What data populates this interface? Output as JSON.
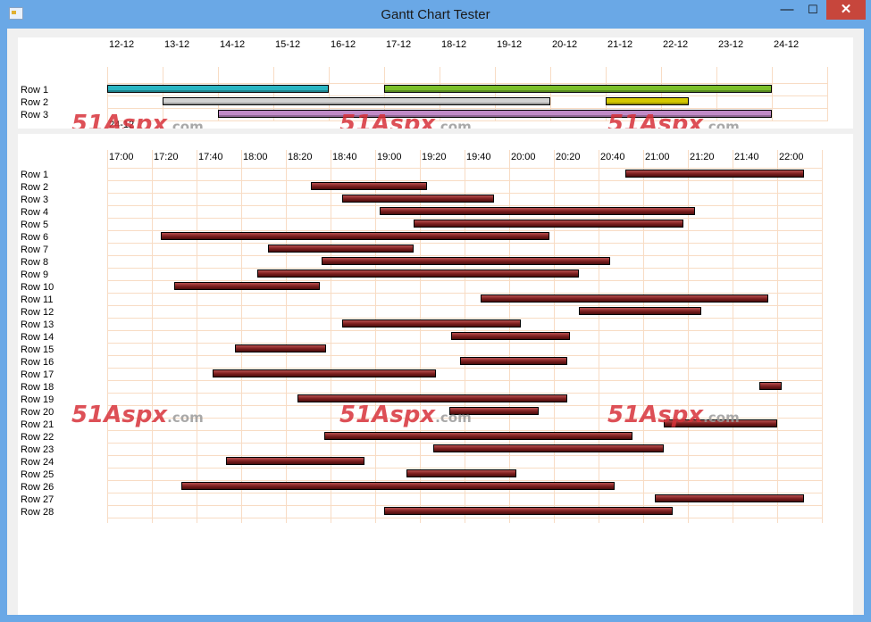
{
  "window": {
    "title": "Gantt Chart Tester",
    "buttons": {
      "minimize": "—",
      "maximize": "☐",
      "close": "✕"
    }
  },
  "watermark": {
    "num": "51",
    "asp": "Aspx",
    "com": ".com"
  },
  "top_chart": {
    "headers": [
      "12-12",
      "13-12",
      "14-12",
      "15-12",
      "16-12",
      "17-12",
      "18-12",
      "19-12",
      "20-12",
      "21-12",
      "22-12",
      "23-12",
      "24-12"
    ],
    "overflow_header": "24-12",
    "rows": [
      "Row 1",
      "Row 2",
      "Row 3"
    ],
    "bars": [
      {
        "row": 0,
        "start": 0,
        "end": 4.0,
        "color": "#2ab5c2"
      },
      {
        "row": 0,
        "start": 5.0,
        "end": 12.0,
        "color": "#7bbf2a"
      },
      {
        "row": 1,
        "start": 1.0,
        "end": 8.0,
        "color": "#d2d2d2"
      },
      {
        "row": 1,
        "start": 9.0,
        "end": 10.5,
        "color": "#d4c800"
      },
      {
        "row": 2,
        "start": 2.0,
        "end": 12.0,
        "color": "#c08ac7"
      }
    ]
  },
  "bottom_chart": {
    "headers": [
      "17:00",
      "17:20",
      "17:40",
      "18:00",
      "18:20",
      "18:40",
      "19:00",
      "19:20",
      "19:40",
      "20:00",
      "20:20",
      "20:40",
      "21:00",
      "21:20",
      "21:40",
      "22:00"
    ],
    "rows": [
      "Row 1",
      "Row 2",
      "Row 3",
      "Row 4",
      "Row 5",
      "Row 6",
      "Row 7",
      "Row 8",
      "Row 9",
      "Row 10",
      "Row 11",
      "Row 12",
      "Row 13",
      "Row 14",
      "Row 15",
      "Row 16",
      "Row 17",
      "Row 18",
      "Row 19",
      "Row 20",
      "Row 21",
      "Row 22",
      "Row 23",
      "Row 24",
      "Row 25",
      "Row 26",
      "Row 27",
      "Row 28"
    ],
    "bars": [
      {
        "row": 0,
        "start": "20:52",
        "end": "22:12"
      },
      {
        "row": 1,
        "start": "18:31",
        "end": "19:23"
      },
      {
        "row": 2,
        "start": "18:45",
        "end": "19:53"
      },
      {
        "row": 3,
        "start": "19:02",
        "end": "21:23"
      },
      {
        "row": 4,
        "start": "19:17",
        "end": "21:18"
      },
      {
        "row": 5,
        "start": "17:24",
        "end": "20:18"
      },
      {
        "row": 6,
        "start": "18:12",
        "end": "19:17"
      },
      {
        "row": 7,
        "start": "18:36",
        "end": "20:45"
      },
      {
        "row": 8,
        "start": "18:07",
        "end": "20:31"
      },
      {
        "row": 9,
        "start": "17:30",
        "end": "18:35"
      },
      {
        "row": 10,
        "start": "19:47",
        "end": "21:56"
      },
      {
        "row": 11,
        "start": "20:31",
        "end": "21:26"
      },
      {
        "row": 12,
        "start": "18:45",
        "end": "20:05"
      },
      {
        "row": 13,
        "start": "19:34",
        "end": "20:27"
      },
      {
        "row": 14,
        "start": "17:57",
        "end": "18:38"
      },
      {
        "row": 15,
        "start": "19:38",
        "end": "20:26"
      },
      {
        "row": 16,
        "start": "17:47",
        "end": "19:27"
      },
      {
        "row": 17,
        "start": "21:52",
        "end": "22:02"
      },
      {
        "row": 18,
        "start": "18:25",
        "end": "20:26"
      },
      {
        "row": 19,
        "start": "19:33",
        "end": "20:13"
      },
      {
        "row": 20,
        "start": "21:09",
        "end": "22:00"
      },
      {
        "row": 21,
        "start": "18:37",
        "end": "20:55"
      },
      {
        "row": 22,
        "start": "19:26",
        "end": "21:09"
      },
      {
        "row": 23,
        "start": "17:53",
        "end": "18:55"
      },
      {
        "row": 24,
        "start": "19:14",
        "end": "20:03"
      },
      {
        "row": 25,
        "start": "17:33",
        "end": "20:47"
      },
      {
        "row": 26,
        "start": "21:05",
        "end": "22:12"
      },
      {
        "row": 27,
        "start": "19:04",
        "end": "21:13"
      }
    ]
  }
}
